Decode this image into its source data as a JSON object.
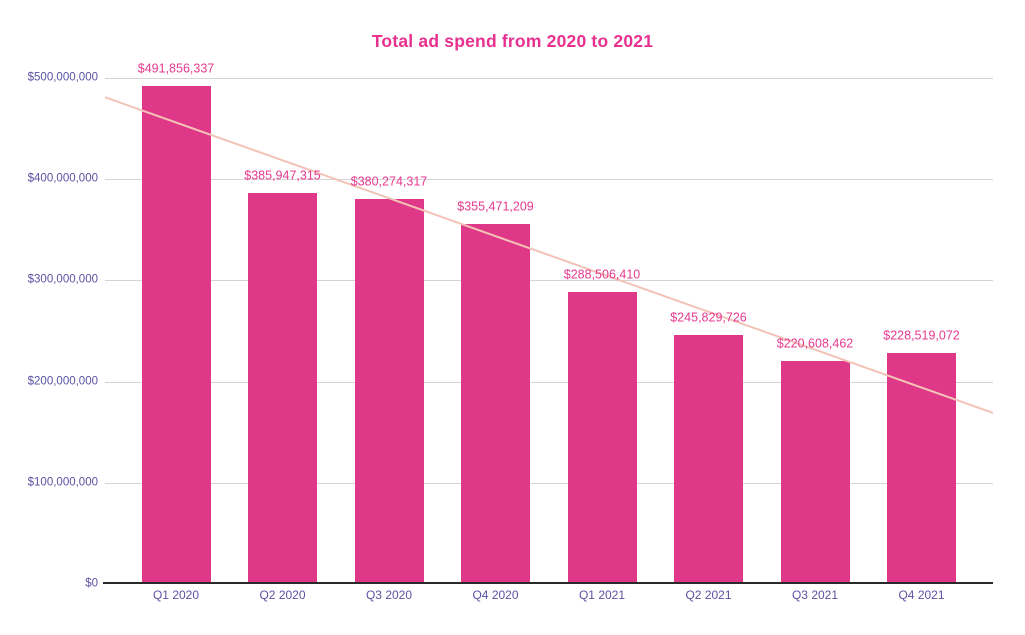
{
  "chart_data": {
    "type": "bar",
    "title": "Total ad spend from 2020 to 2021",
    "categories": [
      "Q1 2020",
      "Q2 2020",
      "Q3 2020",
      "Q4 2020",
      "Q1 2021",
      "Q2 2021",
      "Q3 2021",
      "Q4 2021"
    ],
    "series": [
      {
        "name": "Total ad spend",
        "values": [
          491856337,
          385947315,
          380274317,
          355471209,
          288506410,
          245829726,
          220608462,
          228519072
        ]
      }
    ],
    "value_labels": [
      "$491,856,337",
      "$385,947,315",
      "$380,274,317",
      "$355,471,209",
      "$288,506,410",
      "$245,829,726",
      "$220,608,462",
      "$228,519,072"
    ],
    "xlabel": "",
    "ylabel": "",
    "y_axis": {
      "range": [
        0,
        500000000
      ],
      "ticks": [
        {
          "value": 0,
          "label": "$0"
        },
        {
          "value": 100000000,
          "label": "$100,000,000"
        },
        {
          "value": 200000000,
          "label": "$200,000,000"
        },
        {
          "value": 300000000,
          "label": "$300,000,000"
        },
        {
          "value": 400000000,
          "label": "$400,000,000"
        },
        {
          "value": 500000000,
          "label": "$500,000,000"
        }
      ]
    },
    "grid": true,
    "legend": false,
    "trendline": {
      "type": "linear",
      "start_value": 481000000,
      "end_value": 169000000
    },
    "colors": {
      "bar": "#E03888",
      "title": "#E8308E",
      "data_label": "#E6398F",
      "axis_label": "#5A52A3",
      "gridline": "#D4D4D4",
      "axis_line": "#2A2A2A",
      "trendline": "#F4C3B7",
      "background": "#FFFFFF"
    }
  }
}
